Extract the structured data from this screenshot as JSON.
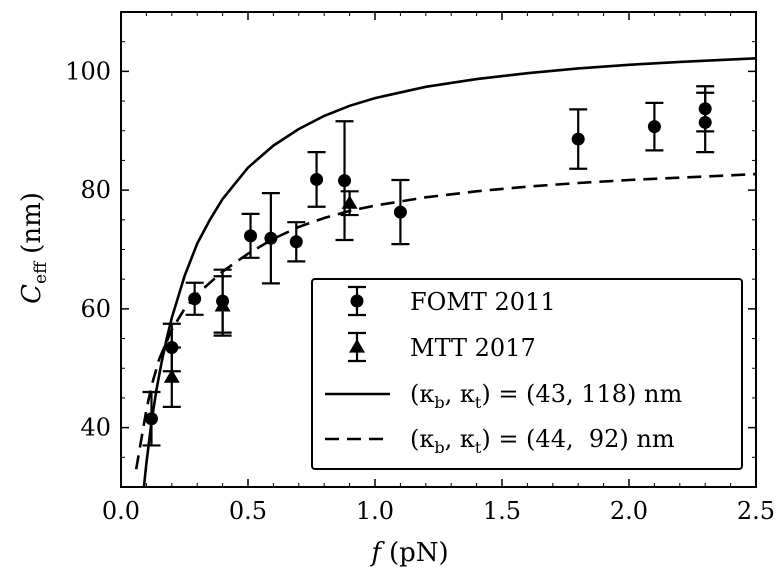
{
  "chart_data": {
    "type": "scatter",
    "title": "",
    "xlabel": {
      "main": "f",
      "unit": "(pN)"
    },
    "ylabel": {
      "main": "C",
      "sub": "eff",
      "unit": "(nm)"
    },
    "xlim": [
      0.0,
      2.5
    ],
    "ylim": [
      30,
      110
    ],
    "x_ticks": [
      0.0,
      0.5,
      1.0,
      1.5,
      2.0,
      2.5
    ],
    "x_tick_labels": [
      "0.0",
      "0.5",
      "1.0",
      "1.5",
      "2.0",
      "2.5"
    ],
    "y_ticks": [
      40,
      60,
      80,
      100
    ],
    "y_tick_labels": [
      "40",
      "60",
      "80",
      "100"
    ],
    "grid": false,
    "legend_position": "lower-right",
    "series": [
      {
        "name": "FOMT 2011",
        "kind": "scatter",
        "marker": "circle",
        "color": "#000000",
        "points": [
          {
            "x": 0.12,
            "y": 41.5,
            "err": 4.5
          },
          {
            "x": 0.2,
            "y": 53.5,
            "err": 4.0
          },
          {
            "x": 0.29,
            "y": 61.7,
            "err": 2.7
          },
          {
            "x": 0.4,
            "y": 61.3,
            "err": 5.3
          },
          {
            "x": 0.51,
            "y": 72.3,
            "err": 3.7
          },
          {
            "x": 0.59,
            "y": 71.9,
            "err": 7.6
          },
          {
            "x": 0.69,
            "y": 71.3,
            "err": 3.3
          },
          {
            "x": 0.77,
            "y": 81.8,
            "err": 4.6
          },
          {
            "x": 0.88,
            "y": 81.6,
            "err": 10.0
          },
          {
            "x": 1.1,
            "y": 76.3,
            "err": 5.4
          },
          {
            "x": 1.8,
            "y": 88.6,
            "err": 5.0
          },
          {
            "x": 2.1,
            "y": 90.7,
            "err": 4.0
          },
          {
            "x": 2.3,
            "y": 93.7,
            "err": 3.8
          },
          {
            "x": 2.3,
            "y": 91.4,
            "err": 5.0
          }
        ]
      },
      {
        "name": "MTT 2017",
        "kind": "scatter",
        "marker": "triangle",
        "color": "#000000",
        "points": [
          {
            "x": 0.2,
            "y": 48.5,
            "err": 5.0
          },
          {
            "x": 0.4,
            "y": 60.5,
            "err": 5.0
          },
          {
            "x": 0.9,
            "y": 77.8,
            "err": 2.0
          }
        ]
      },
      {
        "name": "(κb, κt) = (43, 118) nm",
        "legend_parts": {
          "lhs_open": "(κ",
          "b": "b",
          "mid": ", κ",
          "t": "t",
          "rhs": ") = (43, 118) nm"
        },
        "kind": "line",
        "dash": "solid",
        "color": "#000000",
        "x": [
          0.09,
          0.1,
          0.12,
          0.14,
          0.16,
          0.18,
          0.2,
          0.25,
          0.3,
          0.35,
          0.4,
          0.5,
          0.6,
          0.7,
          0.8,
          0.9,
          1.0,
          1.2,
          1.4,
          1.6,
          1.8,
          2.0,
          2.2,
          2.5
        ],
        "y": [
          30.0,
          34.0,
          41.0,
          46.5,
          51.0,
          55.0,
          58.5,
          65.5,
          71.0,
          75.0,
          78.5,
          83.8,
          87.5,
          90.3,
          92.5,
          94.2,
          95.5,
          97.4,
          98.7,
          99.7,
          100.5,
          101.1,
          101.6,
          102.2
        ]
      },
      {
        "name": "(κb, κt) = (44,  92) nm",
        "legend_parts": {
          "lhs_open": "(κ",
          "b": "b",
          "mid": ", κ",
          "t": "t",
          "rhs": ") = (44,  92) nm"
        },
        "kind": "line",
        "dash": "dashed",
        "color": "#000000",
        "x": [
          0.06,
          0.08,
          0.1,
          0.12,
          0.15,
          0.2,
          0.25,
          0.3,
          0.4,
          0.5,
          0.6,
          0.7,
          0.8,
          0.9,
          1.0,
          1.2,
          1.4,
          1.6,
          1.8,
          2.0,
          2.2,
          2.5
        ],
        "y": [
          33.0,
          38.0,
          43.0,
          47.0,
          51.5,
          56.5,
          60.0,
          62.5,
          66.3,
          69.3,
          71.8,
          73.8,
          75.3,
          76.5,
          77.4,
          78.8,
          79.8,
          80.6,
          81.2,
          81.7,
          82.1,
          82.7
        ]
      }
    ]
  }
}
